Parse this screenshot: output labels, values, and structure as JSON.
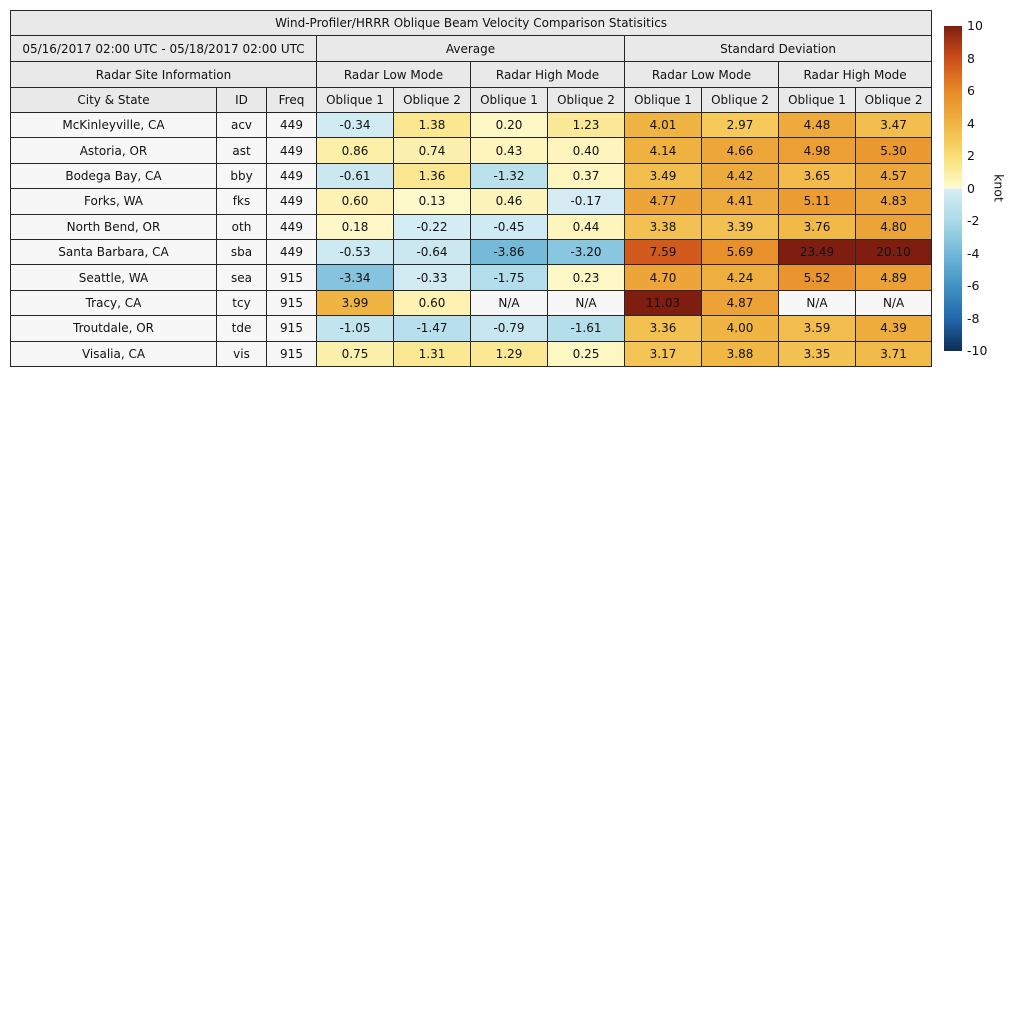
{
  "chart_data": {
    "type": "table",
    "title": "Wind-Profiler/HRRR Oblique Beam Velocity Comparison Statisitics",
    "date_range": "05/16/2017 02:00 UTC - 05/18/2017 02:00 UTC",
    "group_headers": {
      "average": "Average",
      "std_dev": "Standard Deviation"
    },
    "site_info_label": "Radar Site Information",
    "mode_headers": [
      "Radar Low Mode",
      "Radar High Mode",
      "Radar Low Mode",
      "Radar High Mode"
    ],
    "column_headers": [
      "City & State",
      "ID",
      "Freq",
      "Oblique 1",
      "Oblique 2",
      "Oblique 1",
      "Oblique 2",
      "Oblique 1",
      "Oblique 2",
      "Oblique 1",
      "Oblique 2"
    ],
    "na_label": "N/A",
    "rows": [
      {
        "city": "McKinleyville, CA",
        "id": "acv",
        "freq": "449",
        "avg": [
          -0.34,
          1.38,
          0.2,
          1.23
        ],
        "std": [
          4.01,
          2.97,
          4.48,
          3.47
        ]
      },
      {
        "city": "Astoria, OR",
        "id": "ast",
        "freq": "449",
        "avg": [
          0.86,
          0.74,
          0.43,
          0.4
        ],
        "std": [
          4.14,
          4.66,
          4.98,
          5.3
        ]
      },
      {
        "city": "Bodega Bay, CA",
        "id": "bby",
        "freq": "449",
        "avg": [
          -0.61,
          1.36,
          -1.32,
          0.37
        ],
        "std": [
          3.49,
          4.42,
          3.65,
          4.57
        ]
      },
      {
        "city": "Forks, WA",
        "id": "fks",
        "freq": "449",
        "avg": [
          0.6,
          0.13,
          0.46,
          -0.17
        ],
        "std": [
          4.77,
          4.41,
          5.11,
          4.83
        ]
      },
      {
        "city": "North Bend, OR",
        "id": "oth",
        "freq": "449",
        "avg": [
          0.18,
          -0.22,
          -0.45,
          0.44
        ],
        "std": [
          3.38,
          3.39,
          3.76,
          4.8
        ]
      },
      {
        "city": "Santa Barbara, CA",
        "id": "sba",
        "freq": "449",
        "avg": [
          -0.53,
          -0.64,
          -3.86,
          -3.2
        ],
        "std": [
          7.59,
          5.69,
          23.49,
          20.1
        ]
      },
      {
        "city": "Seattle, WA",
        "id": "sea",
        "freq": "915",
        "avg": [
          -3.34,
          -0.33,
          -1.75,
          0.23
        ],
        "std": [
          4.7,
          4.24,
          5.52,
          4.89
        ]
      },
      {
        "city": "Tracy, CA",
        "id": "tcy",
        "freq": "915",
        "avg": [
          3.99,
          0.6,
          null,
          null
        ],
        "std": [
          11.03,
          4.87,
          null,
          null
        ]
      },
      {
        "city": "Troutdale, OR",
        "id": "tde",
        "freq": "915",
        "avg": [
          -1.05,
          -1.47,
          -0.79,
          -1.61
        ],
        "std": [
          3.36,
          4.0,
          3.59,
          4.39
        ]
      },
      {
        "city": "Visalia, CA",
        "id": "vis",
        "freq": "915",
        "avg": [
          0.75,
          1.31,
          1.29,
          0.25
        ],
        "std": [
          3.17,
          3.88,
          3.35,
          3.71
        ]
      }
    ],
    "colorbar": {
      "label": "knot",
      "min": -10,
      "max": 10,
      "ticks": [
        10,
        8,
        6,
        4,
        2,
        0,
        -2,
        -4,
        -6,
        -8,
        -10
      ],
      "positive_stops": [
        [
          0,
          "#fefbd0"
        ],
        [
          2,
          "#f9de73"
        ],
        [
          4,
          "#f0b442"
        ],
        [
          6,
          "#e78a28"
        ],
        [
          8,
          "#cc4e1a"
        ],
        [
          10,
          "#7f1e10"
        ]
      ],
      "negative_stops": [
        [
          0,
          "#d9eef5"
        ],
        [
          -2,
          "#acdae9"
        ],
        [
          -4,
          "#72b8d8"
        ],
        [
          -6,
          "#4193c4"
        ],
        [
          -8,
          "#2268ac"
        ],
        [
          -10,
          "#0e2d55"
        ]
      ]
    },
    "colors": {
      "header_bg": "#e9e9e9",
      "label_bg": "#f7f7f7",
      "na_bg": "#f7f7f7",
      "border": "#262626",
      "text": "#111111",
      "background": "#ffffff"
    }
  }
}
